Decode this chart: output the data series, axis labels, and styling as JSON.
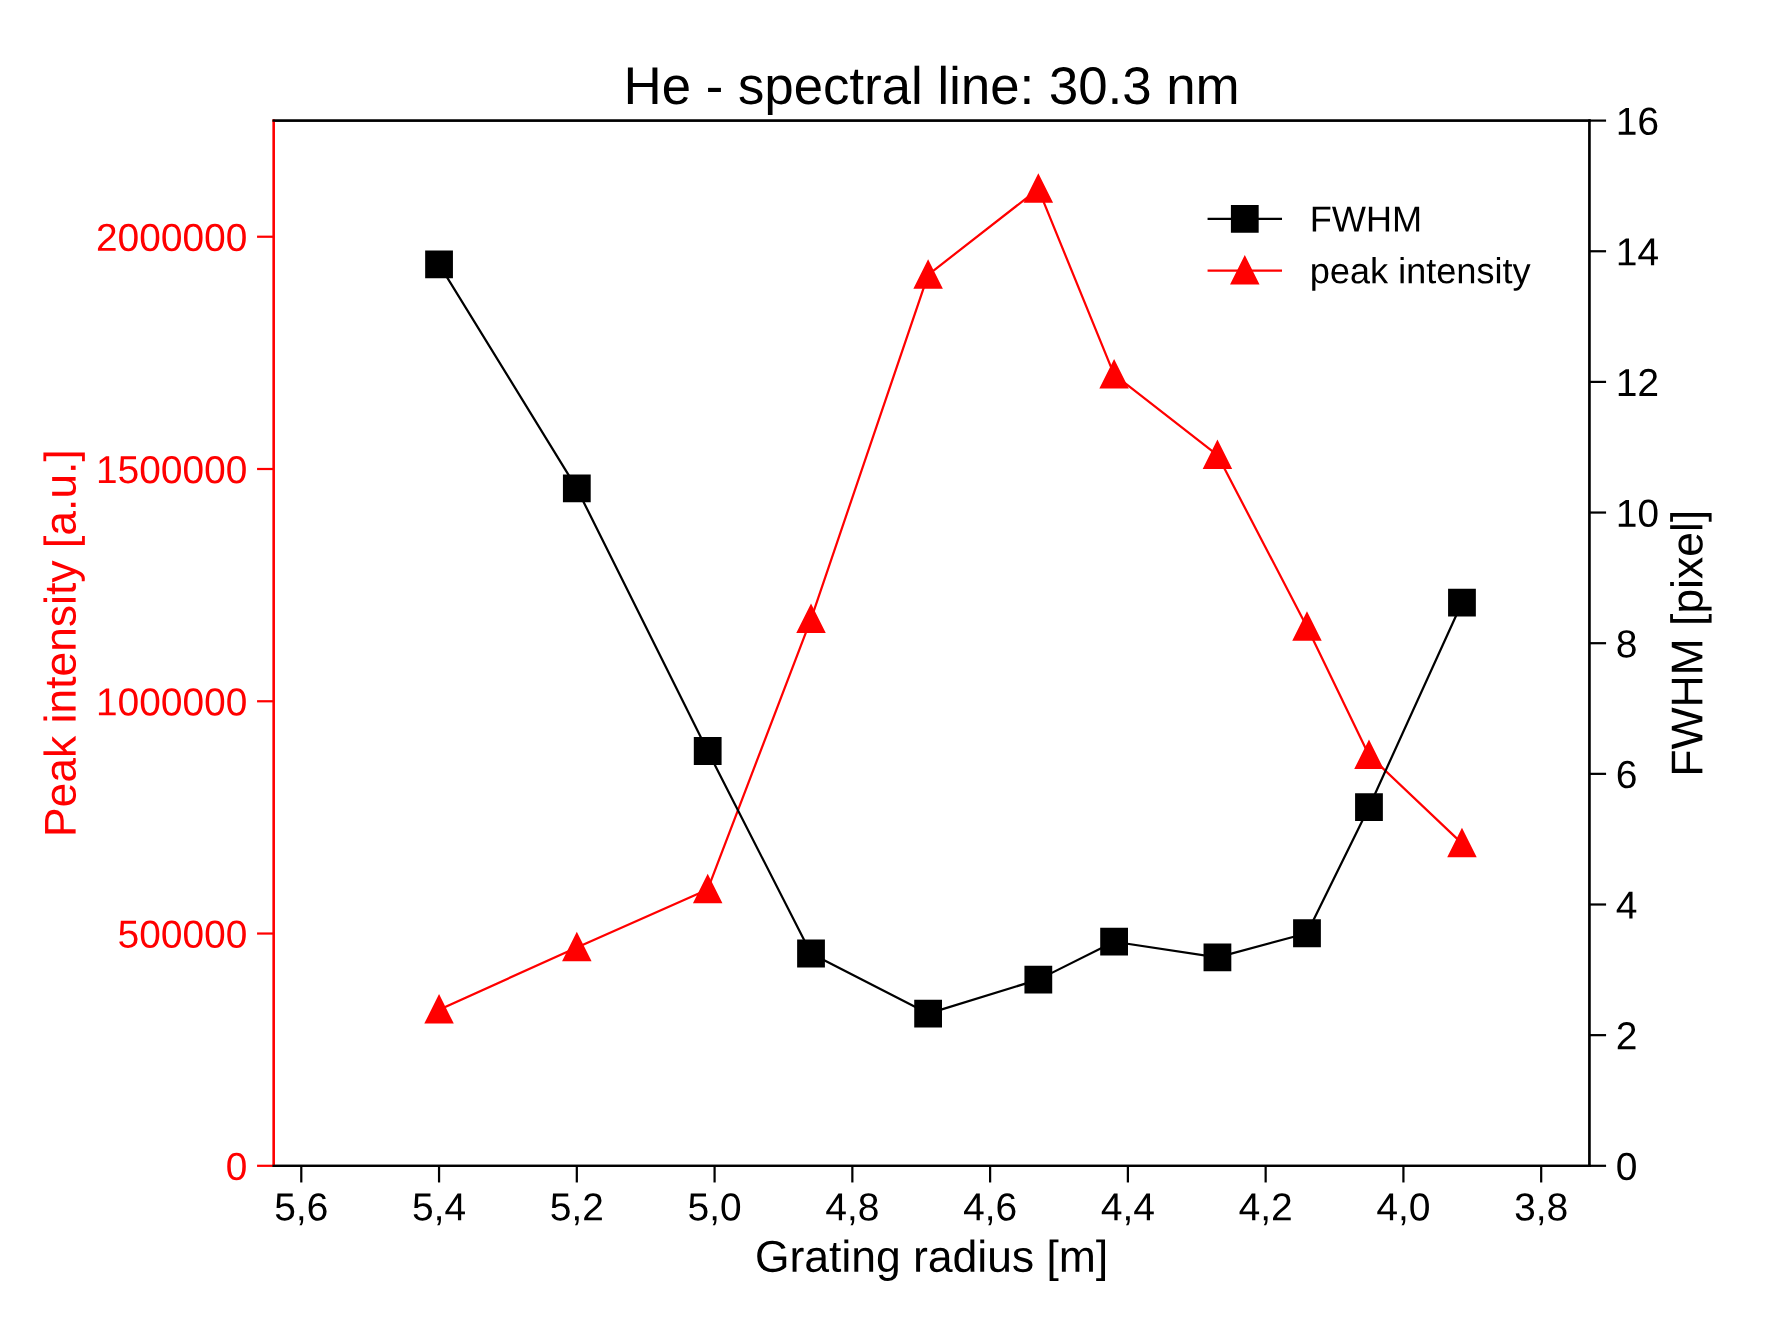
{
  "chart_data": {
    "type": "line",
    "title": "He - spectral line: 30.3 nm",
    "xlabel": "Grating radius [m]",
    "ylabel": "Peak intensity [a.u.]",
    "y2label": "FWHM [pixel]",
    "x": [
      5.4,
      5.2,
      5.01,
      4.86,
      4.69,
      4.53,
      4.42,
      4.27,
      4.14,
      4.05,
      3.915
    ],
    "series": [
      {
        "name": "FWHM",
        "color": "#000000",
        "axis": "y2",
        "marker": "square",
        "values": [
          13.8,
          10.37,
          6.35,
          3.25,
          2.33,
          2.85,
          3.43,
          3.19,
          3.56,
          5.49,
          8.62
        ]
      },
      {
        "name": "peak intensity",
        "color": "#ff0000",
        "marker": "triangle",
        "values": [
          336000,
          470000,
          595000,
          1177000,
          1918000,
          2103000,
          1703000,
          1530000,
          1160000,
          884000,
          694000
        ]
      }
    ],
    "xlim": [
      5.64,
      3.73
    ],
    "xticks": [
      {
        "value": 5.6,
        "label": "5,6"
      },
      {
        "value": 5.4,
        "label": "5,4"
      },
      {
        "value": 5.2,
        "label": "5,2"
      },
      {
        "value": 5.0,
        "label": "5,0"
      },
      {
        "value": 4.8,
        "label": "4,8"
      },
      {
        "value": 4.6,
        "label": "4,6"
      },
      {
        "value": 4.4,
        "label": "4,4"
      },
      {
        "value": 4.2,
        "label": "4,2"
      },
      {
        "value": 4.0,
        "label": "4,0"
      },
      {
        "value": 3.8,
        "label": "3,8"
      }
    ],
    "ylim": [
      0,
      2250000
    ],
    "yticks": [
      0,
      500000,
      1000000,
      1500000,
      2000000
    ],
    "y2lim": [
      0,
      16
    ],
    "y2ticks": [
      0,
      2,
      4,
      6,
      8,
      10,
      12,
      14,
      16
    ],
    "legend": "top right",
    "grid": false,
    "line_style": "solid"
  }
}
